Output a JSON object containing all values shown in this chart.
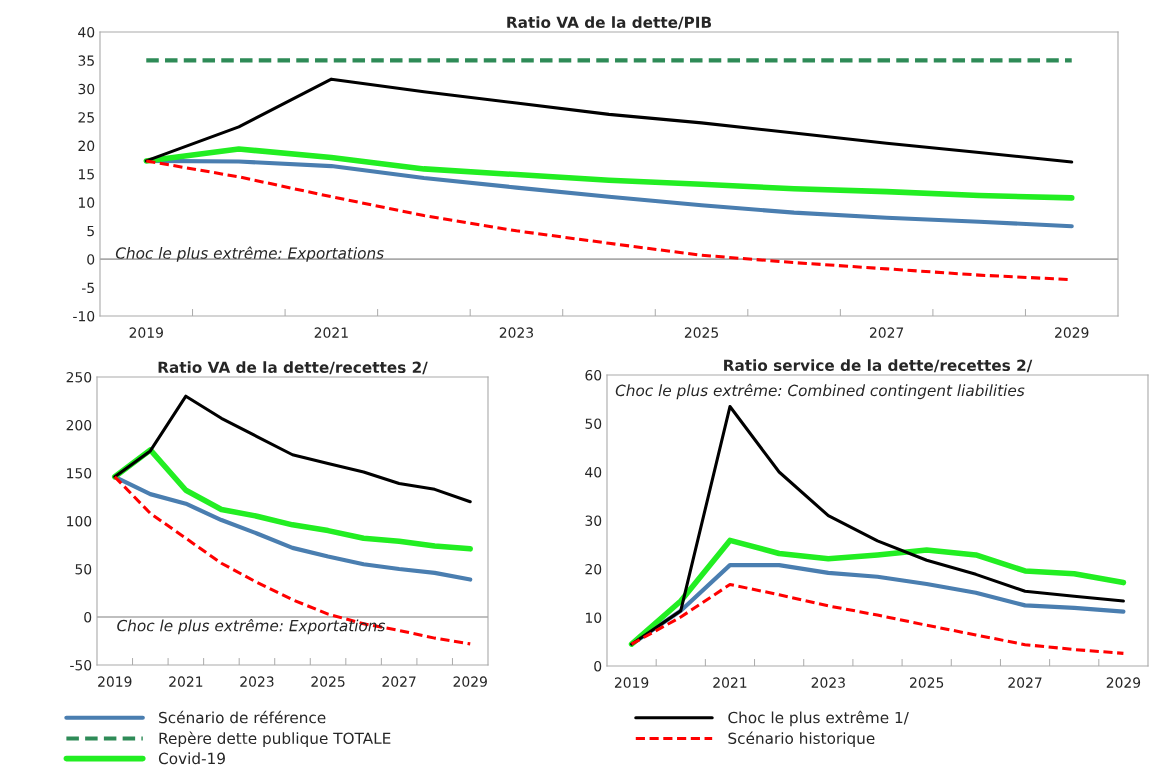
{
  "chart_data": [
    {
      "type": "line",
      "title": "Ratio VA de la dette/PIB",
      "categories": [
        "2019",
        null,
        "2021",
        null,
        "2023",
        null,
        "2025",
        null,
        "2027",
        null,
        "2029"
      ],
      "ylim": [
        -10,
        40
      ],
      "yticks": [
        -10,
        -5,
        0,
        5,
        10,
        15,
        20,
        25,
        30,
        35,
        40
      ],
      "annotations": [
        "Choc le plus extrême: Exportations"
      ],
      "legend": "bottom",
      "series": [
        {
          "name": "Scénario de référence",
          "color": "#4a7eb0",
          "values": [
            17.3,
            17.2,
            16.4,
            14.3,
            12.6,
            11.0,
            9.5,
            8.2,
            7.3,
            6.6,
            5.8
          ]
        },
        {
          "name": "Repère dette publique TOTALE",
          "color": "#2e8b57",
          "line_style": "dashed",
          "values": [
            35,
            35,
            35,
            35,
            35,
            35,
            35,
            35,
            35,
            35,
            35
          ]
        },
        {
          "name": "Covid-19",
          "color": "#22ee22",
          "values": [
            17.3,
            19.4,
            17.9,
            15.9,
            14.9,
            13.9,
            13.2,
            12.4,
            11.9,
            11.2,
            10.8
          ]
        },
        {
          "name": "Choc le plus extrême 1/",
          "color": "#000000",
          "values": [
            17.3,
            23.3,
            31.7,
            29.5,
            27.5,
            25.5,
            24.0,
            22.2,
            20.4,
            18.8,
            17.1
          ]
        },
        {
          "name": "Scénario historique",
          "color": "#ff0000",
          "line_style": "dashed",
          "values": [
            17.3,
            14.5,
            11.0,
            7.7,
            5.0,
            2.8,
            0.7,
            -0.6,
            -1.7,
            -2.8,
            -3.6
          ]
        }
      ]
    },
    {
      "type": "line",
      "title": "Ratio VA de la dette/recettes 2/",
      "categories": [
        "2019",
        null,
        "2021",
        null,
        "2023",
        null,
        "2025",
        null,
        "2027",
        null,
        "2029"
      ],
      "ylim": [
        -50,
        250
      ],
      "yticks": [
        -50,
        0,
        50,
        100,
        150,
        200,
        250
      ],
      "annotations": [
        "Choc le plus extrême: Exportations"
      ],
      "series": [
        {
          "color": "#4a7eb0",
          "values": [
            146,
            128,
            118,
            101,
            87,
            72,
            63,
            55,
            50,
            46,
            39
          ]
        },
        {
          "color": "#22ee22",
          "values": [
            146,
            174,
            132,
            112,
            105,
            96,
            90,
            82,
            79,
            74,
            71
          ]
        },
        {
          "color": "#000000",
          "values": [
            146,
            173,
            230,
            207,
            188,
            169,
            160,
            151,
            139,
            133,
            120
          ]
        },
        {
          "color": "#ff0000",
          "line_style": "dashed",
          "values": [
            146,
            108,
            82,
            56,
            36,
            18,
            3,
            -7,
            -14,
            -22,
            -28
          ]
        }
      ]
    },
    {
      "type": "line",
      "title": "Ratio service de la dette/recettes 2/",
      "categories": [
        "2019",
        null,
        "2021",
        null,
        "2023",
        null,
        "2025",
        null,
        "2027",
        null,
        "2029"
      ],
      "ylim": [
        0,
        60
      ],
      "yticks": [
        0,
        10,
        20,
        30,
        40,
        50,
        60
      ],
      "annotations": [
        "Choc le plus extrême: Combined contingent liabilities"
      ],
      "series": [
        {
          "color": "#4a7eb0",
          "values": [
            4.5,
            11.4,
            20.8,
            20.8,
            19.2,
            18.4,
            16.9,
            15.1,
            12.5,
            12.0,
            11.2
          ]
        },
        {
          "color": "#22ee22",
          "values": [
            4.5,
            13.4,
            25.9,
            23.2,
            22.1,
            22.9,
            23.9,
            22.9,
            19.6,
            19.0,
            17.2
          ]
        },
        {
          "color": "#000000",
          "values": [
            4.5,
            11.4,
            53.5,
            40.0,
            31.0,
            25.8,
            21.8,
            18.9,
            15.4,
            14.4,
            13.4
          ]
        },
        {
          "color": "#ff0000",
          "line_style": "dashed",
          "values": [
            4.5,
            10.1,
            16.8,
            14.7,
            12.4,
            10.5,
            8.4,
            6.4,
            4.4,
            3.4,
            2.6
          ]
        }
      ]
    }
  ]
}
